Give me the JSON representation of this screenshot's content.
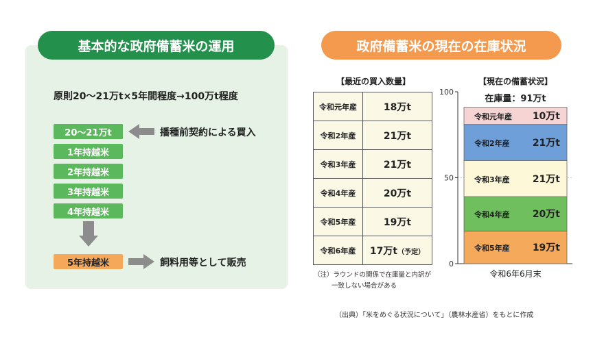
{
  "left": {
    "title": "基本的な政府備蓄米の運用",
    "principle": "原則20～21万t×5年間程度→100万t程度",
    "stages": [
      "20～21万t",
      "1年持越米",
      "2年持越米",
      "3年持越米",
      "4年持越米"
    ],
    "final_stage": "5年持越米",
    "purchase_label": "播種前契約による買入",
    "sale_label": "飼料用等として販売"
  },
  "right": {
    "title": "政府備蓄米の現在の在庫状況",
    "table_title": "【最近の買入数量】",
    "stock_title": "【現在の備蓄状況】",
    "note_line1": "（注）ラウンドの関係で在庫量と内訳が",
    "note_line2": "一致しない場合がある"
  },
  "source": "（出典）「米をめぐる状況について」（農林水産省）をもとに作成",
  "chart_data": [
    {
      "type": "table",
      "title": "【最近の買入数量】",
      "rows": [
        {
          "year": "令和元年産",
          "value": 18,
          "display": "18万t",
          "note": ""
        },
        {
          "year": "令和2年産",
          "value": 21,
          "display": "21万t",
          "note": ""
        },
        {
          "year": "令和3年産",
          "value": 21,
          "display": "21万t",
          "note": ""
        },
        {
          "year": "令和4年産",
          "value": 20,
          "display": "20万t",
          "note": ""
        },
        {
          "year": "令和5年産",
          "value": 19,
          "display": "19万t",
          "note": ""
        },
        {
          "year": "令和6年産",
          "value": 17,
          "display": "17万t",
          "note": "（予定）"
        }
      ]
    },
    {
      "type": "bar",
      "stacked": true,
      "title": "【現在の備蓄状況】",
      "total_label": "在庫量：91万t",
      "xlabel": "令和6年6月末",
      "ylim": [
        0,
        100
      ],
      "yticks": [
        0,
        50,
        100
      ],
      "segments": [
        {
          "name": "令和5年産",
          "value": 19,
          "display": "19万t",
          "color": "#f5a95b"
        },
        {
          "name": "令和4年産",
          "value": 20,
          "display": "20万t",
          "color": "#6fbf5e"
        },
        {
          "name": "令和3年産",
          "value": 21,
          "display": "21万t",
          "color": "#fdf8d8"
        },
        {
          "name": "令和2年産",
          "value": 21,
          "display": "21万t",
          "color": "#6f9fd8"
        },
        {
          "name": "令和元年産",
          "value": 10,
          "display": "10万t",
          "color": "#f7d4d4"
        }
      ]
    }
  ],
  "colors": {
    "green_header": "#23914c",
    "orange_header": "#f49a4f",
    "stage_green": "#5cb85c",
    "stage_orange": "#f5a75a",
    "arrow_gray": "#8c8c8c"
  }
}
